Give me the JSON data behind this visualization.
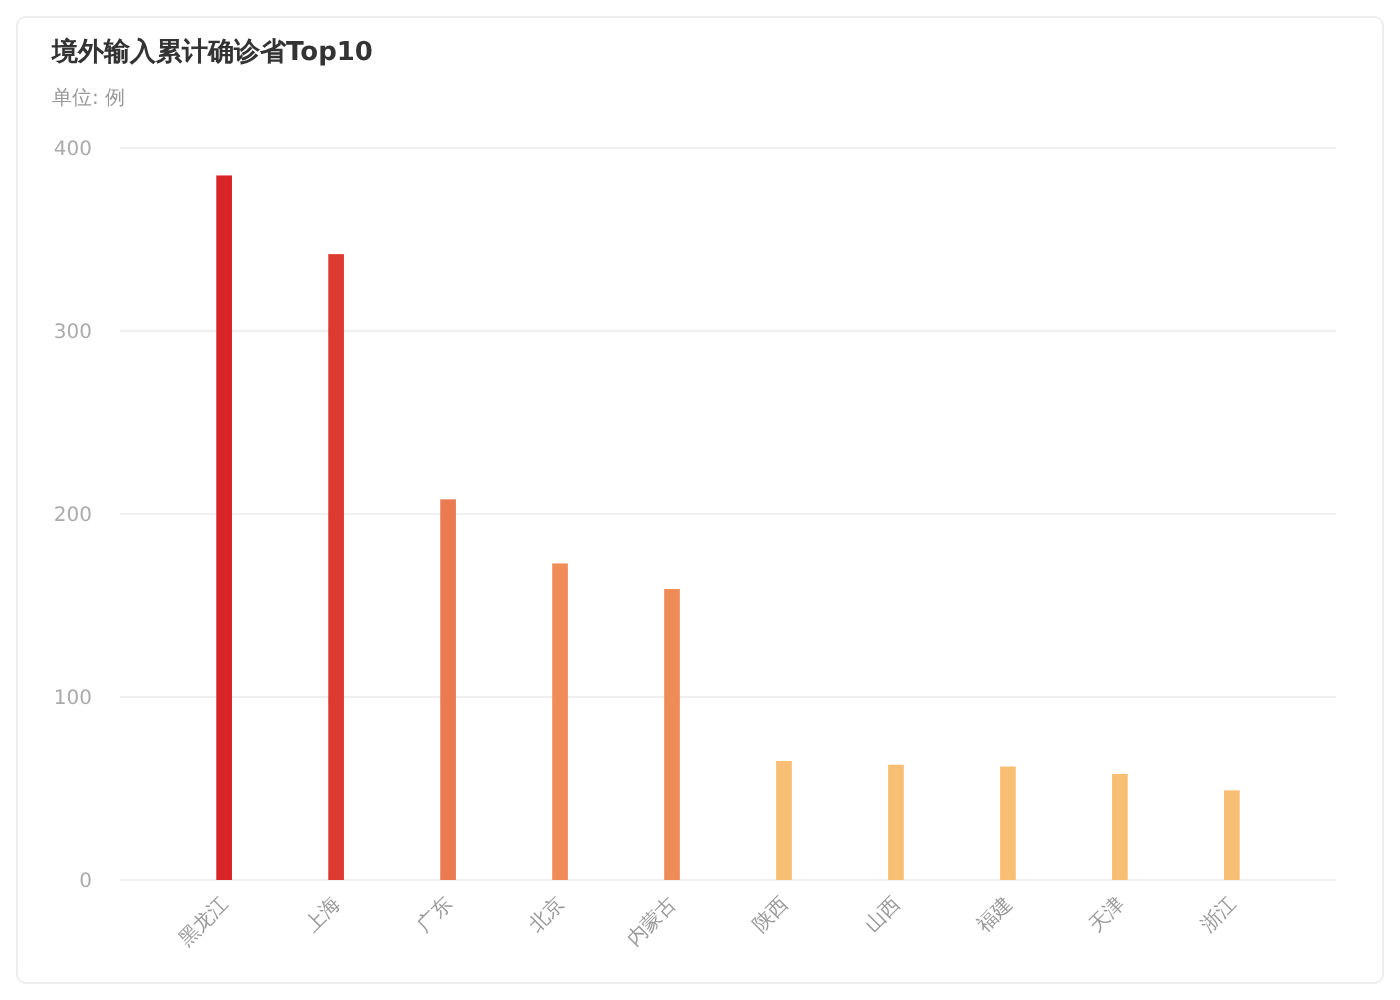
{
  "chart_data": {
    "type": "bar",
    "title": "境外输入累计确诊省Top10",
    "subtitle": "单位: 例",
    "categories": [
      "黑龙江",
      "上海",
      "广东",
      "北京",
      "内蒙古",
      "陕西",
      "山西",
      "福建",
      "天津",
      "浙江"
    ],
    "values": [
      385,
      342,
      208,
      173,
      159,
      65,
      63,
      62,
      58,
      49
    ],
    "colors": [
      "#d92428",
      "#de3b30",
      "#ea7a4f",
      "#ef8c57",
      "#ee8c58",
      "#f8bf74",
      "#f8bf74",
      "#f8bf74",
      "#f8bf74",
      "#f8bf74"
    ],
    "ylim": [
      0,
      400
    ],
    "yticks": [
      0,
      100,
      200,
      300,
      400
    ],
    "grid": "y"
  }
}
